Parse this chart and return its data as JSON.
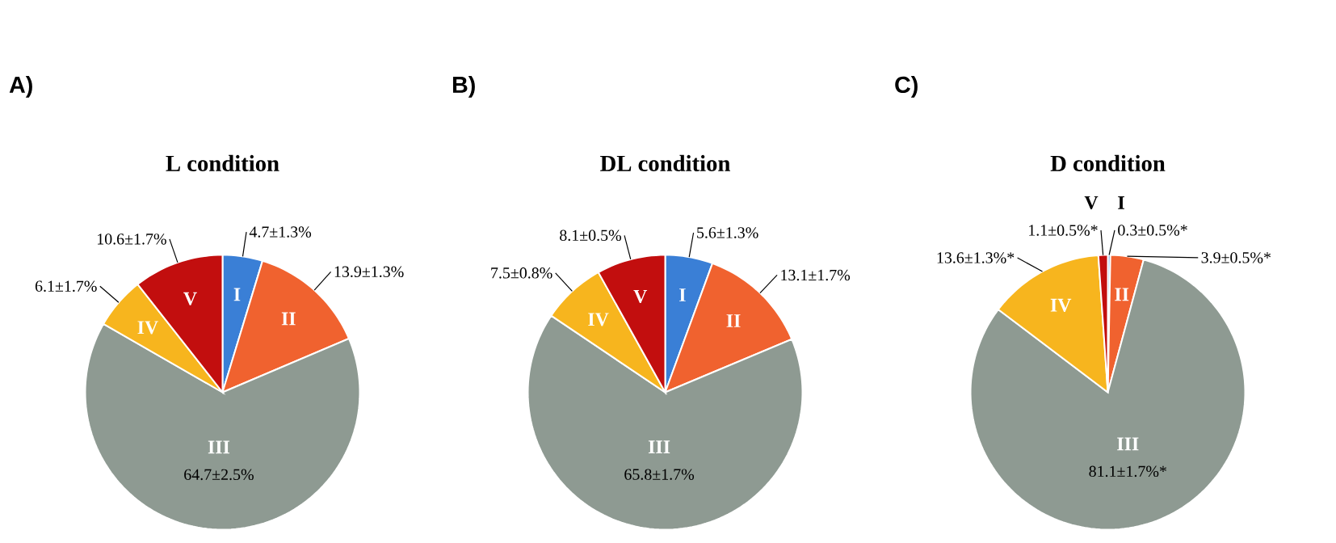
{
  "chart_data": [
    {
      "type": "pie",
      "title": "L condition",
      "annotations": [
        "A)"
      ],
      "categories": [
        "I",
        "II",
        "III",
        "IV",
        "V"
      ],
      "values": [
        4.7,
        13.9,
        64.7,
        6.1,
        10.6
      ],
      "colors": [
        "#3a7fd6",
        "#f0622f",
        "#8e9a92",
        "#f7b51e",
        "#c20e0e"
      ],
      "value_labels": [
        "4.7±1.3%",
        "13.9±1.3%",
        "64.7±2.5%",
        "6.1±1.7%",
        "10.6±1.7%"
      ]
    },
    {
      "type": "pie",
      "title": "DL condition",
      "annotations": [
        "B)"
      ],
      "categories": [
        "I",
        "II",
        "III",
        "IV",
        "V"
      ],
      "values": [
        5.6,
        13.1,
        65.8,
        7.5,
        8.1
      ],
      "colors": [
        "#3a7fd6",
        "#f0622f",
        "#8e9a92",
        "#f7b51e",
        "#c20e0e"
      ],
      "value_labels": [
        "5.6±1.3%",
        "13.1±1.7%",
        "65.8±1.7%",
        "7.5±0.8%",
        "8.1±0.5%"
      ]
    },
    {
      "type": "pie",
      "title": "D condition",
      "annotations": [
        "C)"
      ],
      "categories": [
        "I",
        "II",
        "III",
        "IV",
        "V"
      ],
      "values": [
        0.3,
        3.9,
        81.1,
        13.6,
        1.1
      ],
      "colors": [
        "#3a7fd6",
        "#f0622f",
        "#8e9a92",
        "#f7b51e",
        "#c20e0e"
      ],
      "value_labels": [
        "0.3±0.5%*",
        "3.9±0.5%*",
        "81.1±1.7%*",
        "13.6±1.3%*",
        "1.1±0.5%*"
      ]
    }
  ]
}
